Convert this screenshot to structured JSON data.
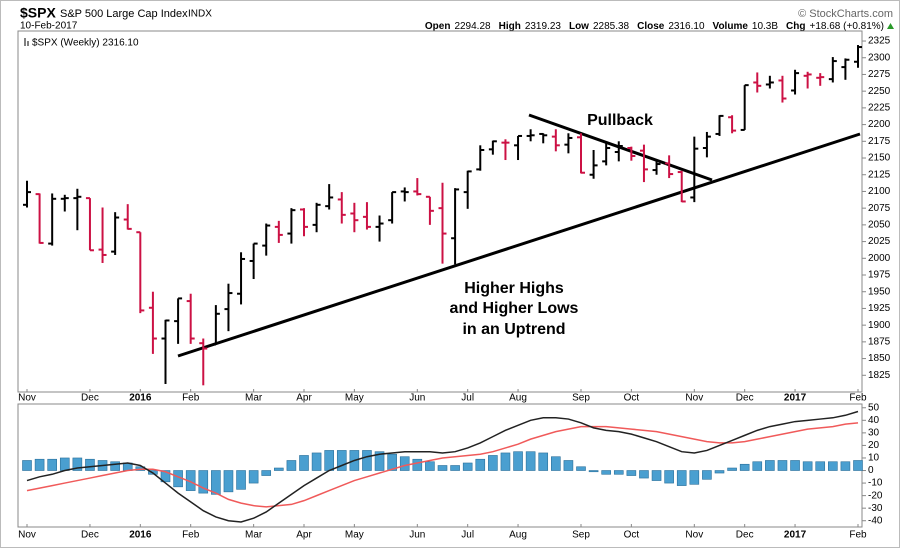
{
  "header": {
    "symbol": "$SPX",
    "name": "S&P 500 Large Cap Index",
    "exchange": "INDX",
    "date": "10-Feb-2017",
    "credit": "© StockCharts.com",
    "stats": [
      {
        "label": "Open",
        "value": "2294.28"
      },
      {
        "label": "High",
        "value": "2319.23"
      },
      {
        "label": "Low",
        "value": "2285.38"
      },
      {
        "label": "Close",
        "value": "2316.10"
      },
      {
        "label": "Volume",
        "value": "10.3B"
      },
      {
        "label": "Chg",
        "value": "+18.68 (+0.81%)"
      }
    ]
  },
  "chart_data": [
    {
      "type": "ohlc",
      "legend": "$SPX (Weekly) 2316.10",
      "up_color": "#000000",
      "down_color": "#cc1144",
      "annotations": [
        "Pullback",
        "Higher Highs",
        "and Higher Lows",
        "in an Uptrend"
      ],
      "categories": [
        "Nov",
        null,
        null,
        null,
        null,
        "Dec",
        null,
        null,
        null,
        "2016",
        null,
        null,
        null,
        "Feb",
        null,
        null,
        null,
        null,
        "Mar",
        null,
        null,
        null,
        "Apr",
        null,
        null,
        null,
        "May",
        null,
        null,
        null,
        null,
        "Jun",
        null,
        null,
        null,
        "Jul",
        null,
        null,
        null,
        "Aug",
        null,
        null,
        null,
        null,
        "Sep",
        null,
        null,
        null,
        "Oct",
        null,
        null,
        null,
        null,
        "Nov",
        null,
        null,
        null,
        "Dec",
        null,
        null,
        null,
        "2017",
        null,
        null,
        null,
        null,
        "Feb"
      ],
      "open": [
        2080,
        2096,
        2022,
        2089,
        2090,
        2090,
        2013,
        2010,
        2058,
        2039,
        1926,
        1880,
        1906,
        1936,
        1873,
        1871,
        1924,
        1947,
        1996,
        2019,
        2047,
        2037,
        2073,
        2050,
        2078,
        2088,
        2067,
        2062,
        2047,
        2057,
        2100,
        2100,
        2092,
        2075,
        2030,
        2099,
        2133,
        2163,
        2173,
        2169,
        2183,
        2186,
        2182,
        2170,
        2181,
        2125,
        2145,
        2159,
        2165,
        2161,
        2132,
        2142,
        2129,
        2091,
        2165,
        2186,
        2211,
        2192,
        2263,
        2260,
        2266,
        2251,
        2273,
        2270,
        2268,
        2286,
        2294
      ],
      "high": [
        2116,
        2097,
        2097,
        2095,
        2104,
        2090,
        2076,
        2069,
        2081,
        2039,
        1950,
        1908,
        1940,
        1947,
        1880,
        1930,
        1962,
        2009,
        2022,
        2052,
        2056,
        2075,
        2075,
        2083,
        2111,
        2099,
        2083,
        2084,
        2064,
        2099,
        2106,
        2120,
        2092,
        2113,
        2105,
        2131,
        2169,
        2176,
        2178,
        2183,
        2193,
        2187,
        2193,
        2187,
        2187,
        2162,
        2175,
        2175,
        2167,
        2170,
        2148,
        2154,
        2131,
        2182,
        2189,
        2214,
        2214,
        2259,
        2278,
        2273,
        2273,
        2282,
        2279,
        2277,
        2301,
        2299,
        2319
      ],
      "low": [
        2076,
        2022,
        2019,
        2070,
        2042,
        2012,
        1993,
        2005,
        2043,
        1918,
        1857,
        1812,
        1872,
        1872,
        1810,
        1871,
        1891,
        1931,
        1969,
        2004,
        2023,
        2022,
        2033,
        2039,
        2073,
        2052,
        2039,
        2043,
        2025,
        2052,
        2085,
        2094,
        2050,
        1992,
        1991,
        2074,
        2131,
        2155,
        2147,
        2147,
        2175,
        2172,
        2160,
        2157,
        2127,
        2119,
        2139,
        2145,
        2146,
        2114,
        2125,
        2120,
        2084,
        2084,
        2151,
        2183,
        2187,
        2192,
        2248,
        2254,
        2233,
        2245,
        2254,
        2258,
        2263,
        2267,
        2285
      ],
      "close": [
        2099,
        2023,
        2089,
        2090,
        2092,
        2012,
        2005,
        2061,
        2044,
        1922,
        1880,
        1907,
        1940,
        1880,
        1865,
        1917,
        1948,
        1999,
        2022,
        2049,
        2035,
        2072,
        2047,
        2080,
        2091,
        2065,
        2057,
        2047,
        2052,
        2099,
        2099,
        2096,
        2071,
        2037,
        2103,
        2130,
        2162,
        2175,
        2173,
        2183,
        2184,
        2184,
        2169,
        2180,
        2128,
        2139,
        2165,
        2168,
        2153,
        2133,
        2141,
        2126,
        2085,
        2164,
        2182,
        2213,
        2191,
        2259,
        2258,
        2263,
        2239,
        2277,
        2275,
        2271,
        2295,
        2297,
        2316
      ],
      "ylim": [
        1800,
        2340
      ],
      "yticks": [
        1825,
        1850,
        1875,
        1900,
        1925,
        1950,
        1975,
        2000,
        2025,
        2050,
        2075,
        2100,
        2125,
        2150,
        2175,
        2200,
        2225,
        2250,
        2275,
        2300,
        2325
      ]
    },
    {
      "type": "macd",
      "macd_color": "#222222",
      "signal_color": "#f05a5a",
      "hist_color": "#4a9fd0",
      "macd": [
        -8,
        -5,
        -3,
        0,
        2,
        3,
        4,
        5,
        6,
        4,
        -2,
        -10,
        -18,
        -25,
        -32,
        -37,
        -40,
        -41,
        -38,
        -33,
        -26,
        -19,
        -12,
        -6,
        0,
        4,
        8,
        11,
        13,
        14,
        15,
        15,
        15,
        14,
        15,
        18,
        22,
        27,
        32,
        36,
        40,
        42,
        42,
        41,
        38,
        34,
        32,
        31,
        29,
        26,
        23,
        19,
        15,
        14,
        16,
        20,
        24,
        28,
        32,
        35,
        37,
        39,
        40,
        41,
        42,
        44,
        47
      ],
      "signal": [
        -16,
        -14,
        -12,
        -10,
        -8,
        -6,
        -4,
        -2,
        0,
        1,
        1,
        -1,
        -5,
        -9,
        -14,
        -18,
        -23,
        -26,
        -28,
        -29,
        -28,
        -27,
        -24,
        -20,
        -16,
        -12,
        -8,
        -5,
        -2,
        1,
        4,
        6,
        8,
        10,
        11,
        12,
        13,
        15,
        18,
        21,
        25,
        28,
        31,
        33,
        35,
        35,
        35,
        34,
        33,
        32,
        31,
        29,
        27,
        25,
        23,
        22,
        22,
        23,
        25,
        27,
        29,
        31,
        33,
        34,
        35,
        37,
        38
      ],
      "histogram": [
        8,
        9,
        9,
        10,
        10,
        9,
        8,
        7,
        6,
        3,
        -3,
        -9,
        -13,
        -16,
        -18,
        -19,
        -17,
        -15,
        -10,
        -4,
        2,
        8,
        12,
        14,
        16,
        16,
        16,
        16,
        15,
        13,
        11,
        9,
        7,
        4,
        4,
        6,
        9,
        12,
        14,
        15,
        15,
        14,
        11,
        8,
        3,
        -1,
        -3,
        -3,
        -4,
        -6,
        -8,
        -10,
        -12,
        -11,
        -7,
        -2,
        2,
        5,
        7,
        8,
        8,
        8,
        7,
        7,
        7,
        7,
        8
      ],
      "ylim": [
        -45,
        53
      ],
      "yticks": [
        -40,
        -30,
        -20,
        -10,
        0,
        10,
        20,
        30,
        40,
        50
      ]
    }
  ]
}
